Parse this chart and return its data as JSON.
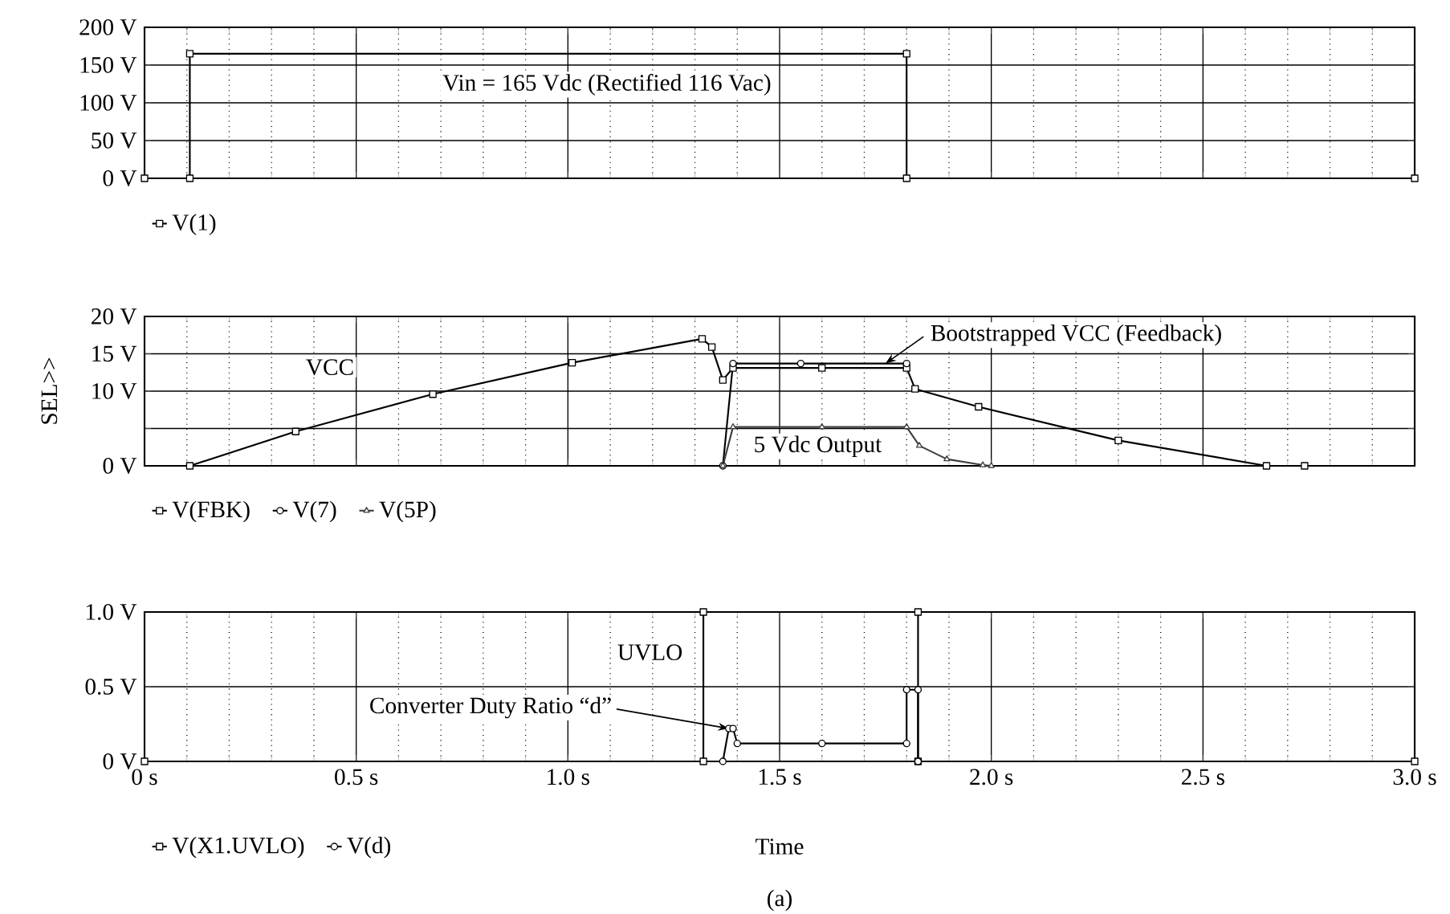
{
  "chart_data": [
    {
      "type": "line",
      "xlim": [
        0,
        3.0
      ],
      "ylim": [
        0,
        200
      ],
      "xticks": [
        {
          "value": 0,
          "label": null
        },
        {
          "value": 0.5,
          "label": null
        },
        {
          "value": 1.0,
          "label": null
        },
        {
          "value": 1.5,
          "label": null
        },
        {
          "value": 2.0,
          "label": null
        },
        {
          "value": 2.5,
          "label": null
        },
        {
          "value": 3.0,
          "label": null
        }
      ],
      "yticks": [
        {
          "value": 0,
          "label": "0 V"
        },
        {
          "value": 50,
          "label": "50 V"
        },
        {
          "value": 100,
          "label": "100 V"
        },
        {
          "value": 150,
          "label": "150 V"
        },
        {
          "value": 200,
          "label": "200 V"
        }
      ],
      "tick_labels": "y",
      "grid": true,
      "legend": "bottom",
      "annotations": [
        "Vin = 165 Vdc (Rectified 116 Vac)"
      ],
      "series": [
        {
          "name": "V(1)",
          "color": "#000000",
          "marker": "square",
          "x": [
            0,
            0.107,
            0.107,
            1.8,
            1.8,
            3.0
          ],
          "values": [
            0,
            0,
            165,
            165,
            0,
            0
          ]
        }
      ]
    },
    {
      "type": "line",
      "xlim": [
        0,
        3.0
      ],
      "ylim": [
        0,
        20
      ],
      "ylabel": "SEL>>",
      "xticks": [
        {
          "value": 0,
          "label": null
        },
        {
          "value": 0.5,
          "label": null
        },
        {
          "value": 1.0,
          "label": null
        },
        {
          "value": 1.5,
          "label": null
        },
        {
          "value": 2.0,
          "label": null
        },
        {
          "value": 2.5,
          "label": null
        },
        {
          "value": 3.0,
          "label": null
        }
      ],
      "yticks": [
        {
          "value": 0,
          "label": "0 V"
        },
        {
          "value": 5,
          "label": null
        },
        {
          "value": 10,
          "label": "10 V"
        },
        {
          "value": 15,
          "label": "15 V"
        },
        {
          "value": 20,
          "label": "20 V"
        }
      ],
      "tick_labels": "y",
      "grid": true,
      "legend": "bottom",
      "annotations": [
        "VCC",
        {
          "text": "Bootstrapped VCC (Feedback)",
          "x": 1.75,
          "y": 13.7
        },
        "5 Vdc Output"
      ],
      "series": [
        {
          "name": "V(FBK)",
          "color": "#000000",
          "marker": "square",
          "x": [
            0.107,
            0.357,
            0.681,
            1.01,
            1.317,
            1.34,
            1.366,
            1.39,
            1.6,
            1.8,
            1.82,
            1.97,
            2.3,
            2.65,
            2.74
          ],
          "values": [
            0,
            4.6,
            9.6,
            13.8,
            17,
            15.9,
            11.5,
            13.1,
            13.1,
            13.1,
            10.3,
            7.9,
            3.4,
            0,
            0
          ]
        },
        {
          "name": "V(7)",
          "color": "#000000",
          "marker": "circle",
          "x": [
            1.366,
            1.39,
            1.55,
            1.8
          ],
          "values": [
            0,
            13.7,
            13.7,
            13.7
          ]
        },
        {
          "name": "V(5P)",
          "color": "#404040",
          "marker": "triangle",
          "x": [
            1.366,
            1.39,
            1.6,
            1.8,
            1.83,
            1.895,
            1.98,
            2.0
          ],
          "values": [
            0,
            5.2,
            5.2,
            5.2,
            2.7,
            0.9,
            0.1,
            0
          ]
        }
      ]
    },
    {
      "type": "line",
      "xlim": [
        0,
        3.0
      ],
      "ylim": [
        0,
        1.0
      ],
      "xlabel": "Time",
      "xticks": [
        {
          "value": 0,
          "label": "0 s"
        },
        {
          "value": 0.5,
          "label": "0.5 s"
        },
        {
          "value": 1.0,
          "label": "1.0 s"
        },
        {
          "value": 1.5,
          "label": "1.5 s"
        },
        {
          "value": 2.0,
          "label": "2.0 s"
        },
        {
          "value": 2.5,
          "label": "2.5 s"
        },
        {
          "value": 3.0,
          "label": "3.0 s"
        }
      ],
      "yticks": [
        {
          "value": 0,
          "label": "0 V"
        },
        {
          "value": 0.5,
          "label": "0.5 V"
        },
        {
          "value": 1.0,
          "label": "1.0 V"
        }
      ],
      "grid": true,
      "legend": "bottom",
      "annotations": [
        "UVLO",
        {
          "text": "Converter Duty Ratio “d”",
          "x": 1.38,
          "y": 0.22
        },
        "(a)"
      ],
      "series": [
        {
          "name": "V(X1.UVLO)",
          "color": "#000000",
          "marker": "square",
          "x": [
            0,
            1.32,
            1.32,
            1.827,
            1.827,
            3.0
          ],
          "values": [
            0,
            0,
            1.0,
            1.0,
            0,
            0
          ]
        },
        {
          "name": "V(d)",
          "color": "#000000",
          "marker": "circle",
          "x": [
            1.366,
            1.38,
            1.39,
            1.4,
            1.6,
            1.8,
            1.8,
            1.827,
            1.827
          ],
          "values": [
            0,
            0.22,
            0.22,
            0.12,
            0.12,
            0.12,
            0.48,
            0.48,
            0
          ]
        }
      ]
    }
  ]
}
